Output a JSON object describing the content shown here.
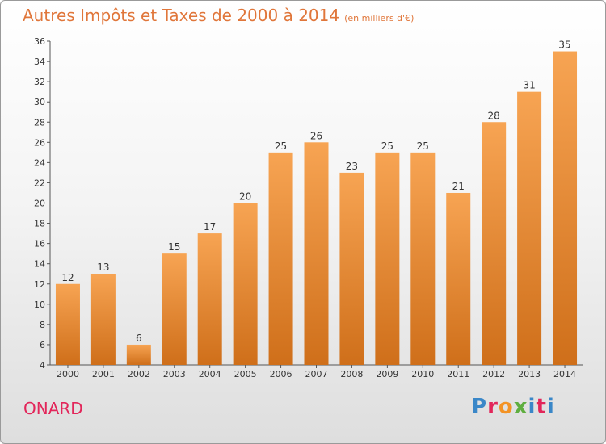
{
  "header": {
    "title": "Autres Impôts et Taxes de 2000 à 2014",
    "unit": "(en milliers d'€)"
  },
  "commune": "ONARD",
  "logo": {
    "text": "Proxiti",
    "letter_colors": [
      "#3a87c8",
      "#e2265a",
      "#f39325",
      "#5fae3f",
      "#3a87c8",
      "#e2265a",
      "#3a87c8"
    ]
  },
  "colors": {
    "bar_top": "#f7a453",
    "bar_bottom": "#cf6f1a",
    "text": "#333333"
  },
  "chart_data": {
    "type": "bar",
    "title": "Autres Impôts et Taxes de 2000 à 2014",
    "subtitle": "(en milliers d'€)",
    "categories": [
      "2000",
      "2001",
      "2002",
      "2003",
      "2004",
      "2005",
      "2006",
      "2007",
      "2008",
      "2009",
      "2010",
      "2011",
      "2012",
      "2013",
      "2014"
    ],
    "values": [
      12,
      13,
      6,
      15,
      17,
      20,
      25,
      26,
      23,
      25,
      25,
      21,
      28,
      31,
      35
    ],
    "ylim": [
      4,
      36
    ],
    "yticks": [
      4,
      6,
      8,
      10,
      12,
      14,
      16,
      18,
      20,
      22,
      24,
      26,
      28,
      30,
      32,
      34,
      36
    ],
    "grid": false,
    "data_labels": true
  }
}
